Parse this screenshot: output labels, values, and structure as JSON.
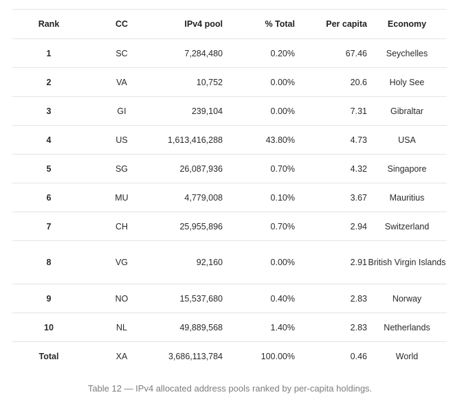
{
  "table": {
    "headers": {
      "rank": "Rank",
      "cc": "CC",
      "pool": "IPv4 pool",
      "pct": "% Total",
      "per_capita": "Per capita",
      "economy": "Economy"
    },
    "rows": [
      {
        "rank": "1",
        "cc": "SC",
        "pool": "7,284,480",
        "pct": "0.20%",
        "per_capita": "67.46",
        "economy": "Seychelles"
      },
      {
        "rank": "2",
        "cc": "VA",
        "pool": "10,752",
        "pct": "0.00%",
        "per_capita": "20.6",
        "economy": "Holy See"
      },
      {
        "rank": "3",
        "cc": "GI",
        "pool": "239,104",
        "pct": "0.00%",
        "per_capita": "7.31",
        "economy": "Gibraltar"
      },
      {
        "rank": "4",
        "cc": "US",
        "pool": "1,613,416,288",
        "pct": "43.80%",
        "per_capita": "4.73",
        "economy": "USA"
      },
      {
        "rank": "5",
        "cc": "SG",
        "pool": "26,087,936",
        "pct": "0.70%",
        "per_capita": "4.32",
        "economy": "Singapore"
      },
      {
        "rank": "6",
        "cc": "MU",
        "pool": "4,779,008",
        "pct": "0.10%",
        "per_capita": "3.67",
        "economy": "Mauritius"
      },
      {
        "rank": "7",
        "cc": "CH",
        "pool": "25,955,896",
        "pct": "0.70%",
        "per_capita": "2.94",
        "economy": "Switzerland"
      },
      {
        "rank": "8",
        "cc": "VG",
        "pool": "92,160",
        "pct": "0.00%",
        "per_capita": "2.91",
        "economy": "British Virgin Islands"
      },
      {
        "rank": "9",
        "cc": "NO",
        "pool": "15,537,680",
        "pct": "0.40%",
        "per_capita": "2.83",
        "economy": "Norway"
      },
      {
        "rank": "10",
        "cc": "NL",
        "pool": "49,889,568",
        "pct": "1.40%",
        "per_capita": "2.83",
        "economy": "Netherlands"
      }
    ],
    "total": {
      "rank": "Total",
      "cc": "XA",
      "pool": "3,686,113,784",
      "pct": "100.00%",
      "per_capita": "0.46",
      "economy": "World"
    }
  },
  "caption": "Table 12 — IPv4 allocated address pools ranked by per-capita holdings."
}
